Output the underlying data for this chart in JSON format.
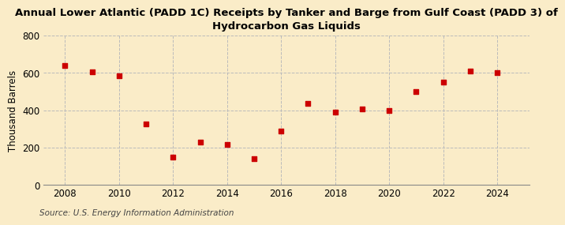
{
  "title": "Annual Lower Atlantic (PADD 1C) Receipts by Tanker and Barge from Gulf Coast (PADD 3) of\nHydrocarbon Gas Liquids",
  "ylabel": "Thousand Barrels",
  "source": "Source: U.S. Energy Information Administration",
  "years": [
    2008,
    2009,
    2010,
    2011,
    2012,
    2013,
    2014,
    2015,
    2016,
    2017,
    2018,
    2019,
    2020,
    2021,
    2022,
    2023,
    2024
  ],
  "values": [
    638,
    605,
    585,
    325,
    148,
    230,
    215,
    140,
    290,
    435,
    390,
    408,
    400,
    500,
    550,
    610,
    600
  ],
  "marker_color": "#cc0000",
  "marker_size": 5,
  "background_color": "#faecc8",
  "grid_color": "#bbbbbb",
  "ylim": [
    0,
    800
  ],
  "yticks": [
    0,
    200,
    400,
    600,
    800
  ],
  "xlim": [
    2007.2,
    2025.2
  ],
  "xticks": [
    2008,
    2010,
    2012,
    2014,
    2016,
    2018,
    2020,
    2022,
    2024
  ],
  "title_fontsize": 9.5,
  "axis_fontsize": 8.5,
  "source_fontsize": 7.5
}
